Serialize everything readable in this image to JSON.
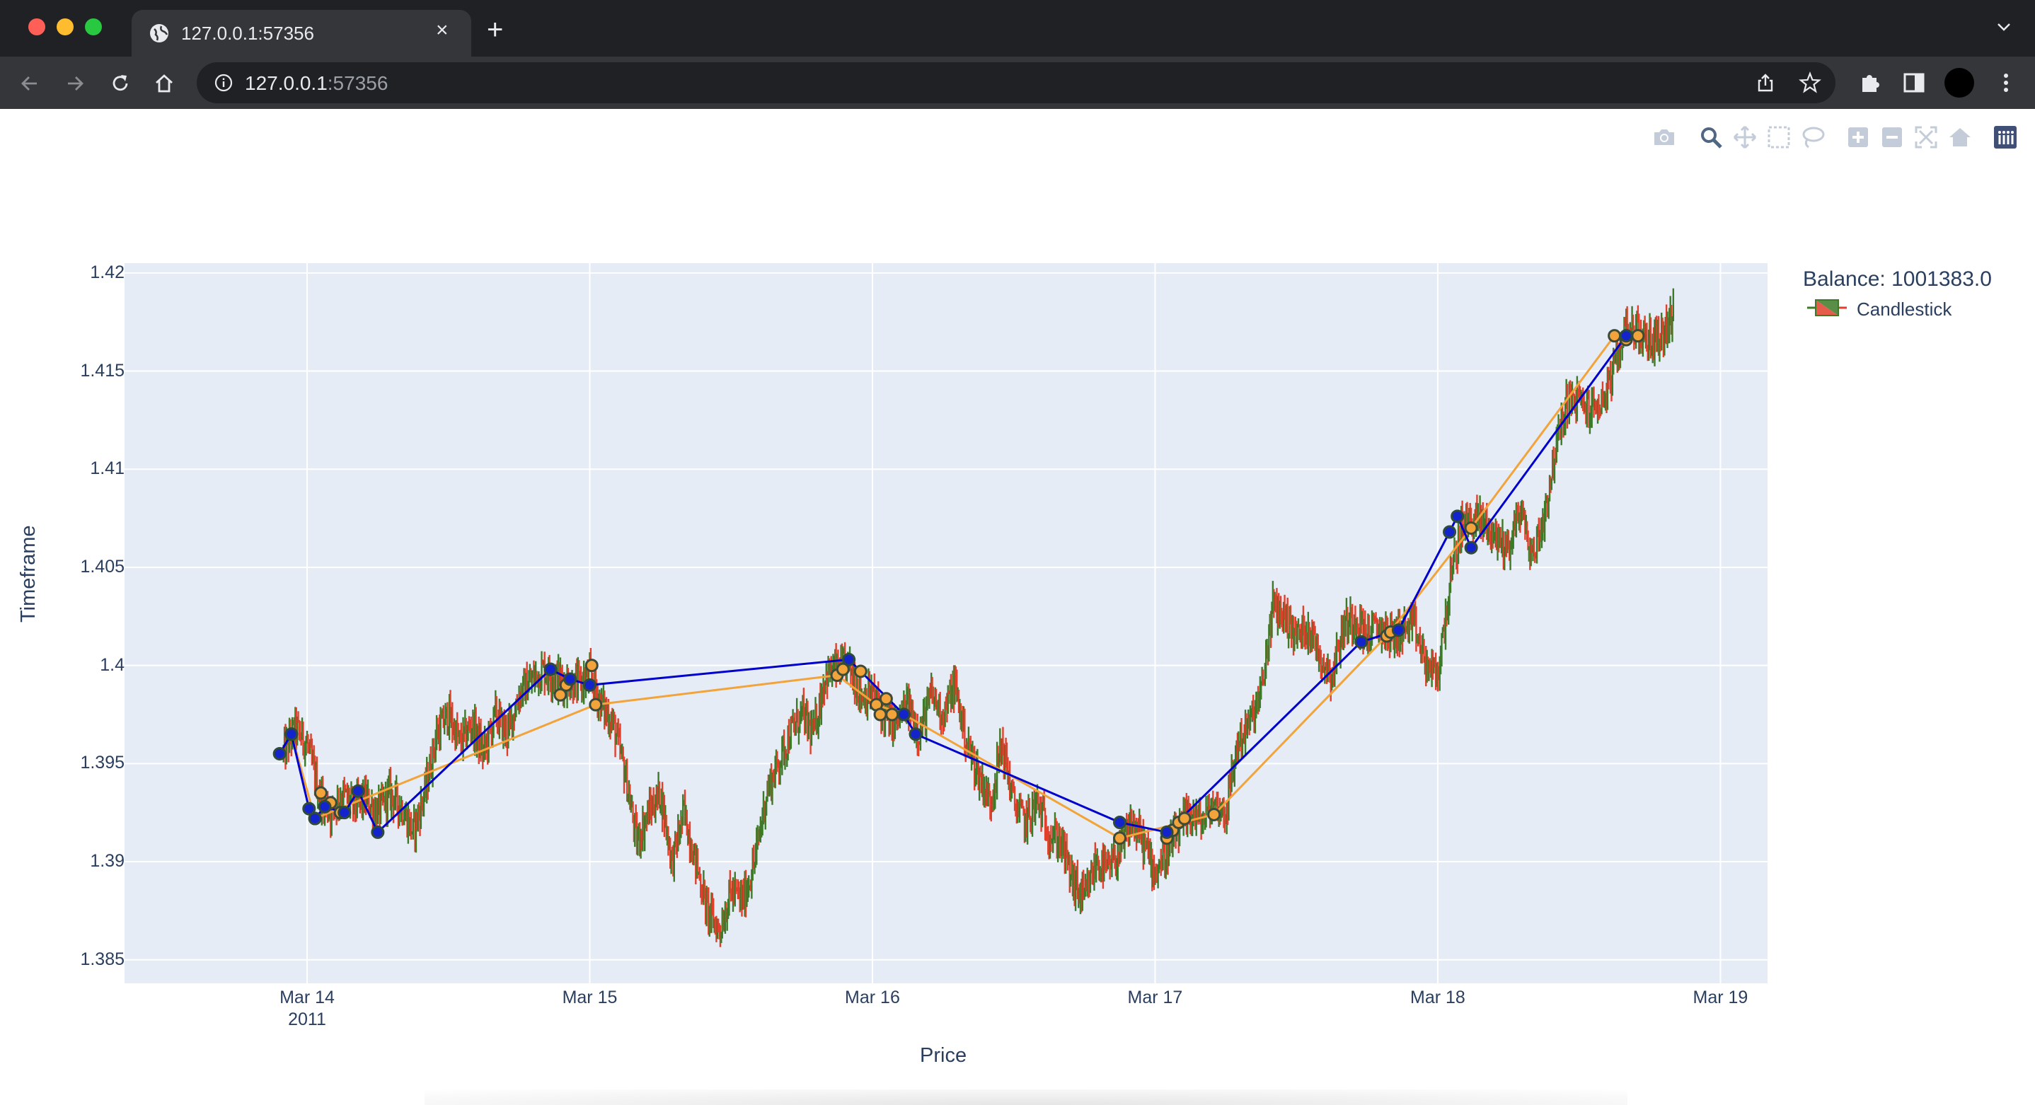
{
  "browser": {
    "tab_title": "127.0.0.1:57356",
    "url_host": "127.0.0.1",
    "url_port": ":57356",
    "colors": {
      "frame": "#202124",
      "toolbar": "#35363a"
    },
    "icons": [
      "back-icon",
      "forward-icon",
      "reload-icon",
      "home-icon",
      "info-icon",
      "share-icon",
      "star-icon",
      "extensions-icon",
      "sidepanel-icon",
      "profile-avatar",
      "kebab-menu-icon"
    ]
  },
  "modebar": {
    "icons": [
      "camera-icon",
      "zoom-icon",
      "pan-icon",
      "box-select-icon",
      "lasso-icon",
      "zoom-in-icon",
      "zoom-out-icon",
      "autoscale-icon",
      "reset-axes-icon",
      "plotly-logo-icon"
    ]
  },
  "legend": {
    "title": "Balance: 1001383.0",
    "item": "Candlestick"
  },
  "chart_data": {
    "type": "candlestick",
    "xlabel": "Price",
    "ylabel": "Timeframe",
    "ylim": [
      1.3838,
      1.4205
    ],
    "xlim": [
      "2011-03-13 08:30",
      "2011-03-19 04:00"
    ],
    "yticks": [
      "1.385",
      "1.39",
      "1.395",
      "1.4",
      "1.405",
      "1.41",
      "1.415",
      "1.42"
    ],
    "xticks": [
      {
        "label": "Mar 14",
        "sub": "2011",
        "x": "2011-03-14"
      },
      {
        "label": "Mar 15",
        "sub": "",
        "x": "2011-03-15"
      },
      {
        "label": "Mar 16",
        "sub": "",
        "x": "2011-03-16"
      },
      {
        "label": "Mar 17",
        "sub": "",
        "x": "2011-03-17"
      },
      {
        "label": "Mar 18",
        "sub": "",
        "x": "2011-03-18"
      },
      {
        "label": "Mar 19",
        "sub": "",
        "x": "2011-03-19"
      }
    ],
    "grid": true,
    "legend_position": "top-right",
    "colors": {
      "increasing": "#3d7a28",
      "decreasing": "#e0402b",
      "plot_bg": "#e5ecf6",
      "buy_line": "#0000cc",
      "sell_line": "#f2a33a"
    },
    "price_path": [
      [
        "2011-03-13 22:00",
        1.3955
      ],
      [
        "2011-03-13 23:00",
        1.3968
      ],
      [
        "2011-03-14 00:00",
        1.396
      ],
      [
        "2011-03-14 01:00",
        1.3935
      ],
      [
        "2011-03-14 02:00",
        1.3925
      ],
      [
        "2011-03-14 03:00",
        1.3935
      ],
      [
        "2011-03-14 04:00",
        1.3928
      ],
      [
        "2011-03-14 05:00",
        1.3932
      ],
      [
        "2011-03-14 06:00",
        1.3925
      ],
      [
        "2011-03-14 07:00",
        1.3935
      ],
      [
        "2011-03-14 08:00",
        1.3928
      ],
      [
        "2011-03-14 09:00",
        1.3915
      ],
      [
        "2011-03-14 10:00",
        1.3935
      ],
      [
        "2011-03-14 11:00",
        1.3965
      ],
      [
        "2011-03-14 12:00",
        1.3975
      ],
      [
        "2011-03-14 13:00",
        1.396
      ],
      [
        "2011-03-14 14:00",
        1.397
      ],
      [
        "2011-03-14 15:00",
        1.3955
      ],
      [
        "2011-03-14 16:00",
        1.3975
      ],
      [
        "2011-03-14 17:00",
        1.3965
      ],
      [
        "2011-03-14 18:00",
        1.3985
      ],
      [
        "2011-03-14 19:00",
        1.3992
      ],
      [
        "2011-03-14 20:00",
        1.3998
      ],
      [
        "2011-03-14 21:00",
        1.3994
      ],
      [
        "2011-03-14 22:00",
        1.3992
      ],
      [
        "2011-03-14 23:00",
        1.399
      ],
      [
        "2011-03-15 00:00",
        1.3995
      ],
      [
        "2011-03-15 01:00",
        1.398
      ],
      [
        "2011-03-15 02:00",
        1.397
      ],
      [
        "2011-03-15 03:00",
        1.3945
      ],
      [
        "2011-03-15 04:00",
        1.391
      ],
      [
        "2011-03-15 05:00",
        1.3925
      ],
      [
        "2011-03-15 06:00",
        1.3935
      ],
      [
        "2011-03-15 07:00",
        1.39
      ],
      [
        "2011-03-15 08:00",
        1.3925
      ],
      [
        "2011-03-15 09:00",
        1.39
      ],
      [
        "2011-03-15 10:00",
        1.3875
      ],
      [
        "2011-03-15 11:00",
        1.3865
      ],
      [
        "2011-03-15 12:00",
        1.3885
      ],
      [
        "2011-03-15 13:00",
        1.388
      ],
      [
        "2011-03-15 14:00",
        1.39
      ],
      [
        "2011-03-15 15:00",
        1.3935
      ],
      [
        "2011-03-15 16:00",
        1.395
      ],
      [
        "2011-03-15 17:00",
        1.3965
      ],
      [
        "2011-03-15 18:00",
        1.3975
      ],
      [
        "2011-03-15 19:00",
        1.3965
      ],
      [
        "2011-03-15 20:00",
        1.3995
      ],
      [
        "2011-03-15 21:00",
        1.3998
      ],
      [
        "2011-03-15 22:00",
        1.4
      ],
      [
        "2011-03-15 23:00",
        1.3985
      ],
      [
        "2011-03-16 00:00",
        1.3985
      ],
      [
        "2011-03-16 01:00",
        1.3975
      ],
      [
        "2011-03-16 02:00",
        1.397
      ],
      [
        "2011-03-16 03:00",
        1.398
      ],
      [
        "2011-03-16 04:00",
        1.3965
      ],
      [
        "2011-03-16 05:00",
        1.3985
      ],
      [
        "2011-03-16 06:00",
        1.3975
      ],
      [
        "2011-03-16 07:00",
        1.399
      ],
      [
        "2011-03-16 08:00",
        1.396
      ],
      [
        "2011-03-16 09:00",
        1.3945
      ],
      [
        "2011-03-16 10:00",
        1.393
      ],
      [
        "2011-03-16 11:00",
        1.396
      ],
      [
        "2011-03-16 12:00",
        1.393
      ],
      [
        "2011-03-16 13:00",
        1.392
      ],
      [
        "2011-03-16 14:00",
        1.393
      ],
      [
        "2011-03-16 15:00",
        1.3915
      ],
      [
        "2011-03-16 16:00",
        1.391
      ],
      [
        "2011-03-16 17:00",
        1.389
      ],
      [
        "2011-03-16 18:00",
        1.388
      ],
      [
        "2011-03-16 19:00",
        1.39
      ],
      [
        "2011-03-16 20:00",
        1.3895
      ],
      [
        "2011-03-16 21:00",
        1.3905
      ],
      [
        "2011-03-16 22:00",
        1.392
      ],
      [
        "2011-03-16 23:00",
        1.391
      ],
      [
        "2011-03-17 00:00",
        1.3895
      ],
      [
        "2011-03-17 01:00",
        1.3905
      ],
      [
        "2011-03-17 02:00",
        1.3915
      ],
      [
        "2011-03-17 03:00",
        1.3925
      ],
      [
        "2011-03-17 04:00",
        1.392
      ],
      [
        "2011-03-17 05:00",
        1.393
      ],
      [
        "2011-03-17 06:00",
        1.3925
      ],
      [
        "2011-03-17 07:00",
        1.396
      ],
      [
        "2011-03-17 08:00",
        1.397
      ],
      [
        "2011-03-17 09:00",
        1.3985
      ],
      [
        "2011-03-17 10:00",
        1.403
      ],
      [
        "2011-03-17 11:00",
        1.4025
      ],
      [
        "2011-03-17 12:00",
        1.4015
      ],
      [
        "2011-03-17 13:00",
        1.402
      ],
      [
        "2011-03-17 14:00",
        1.4005
      ],
      [
        "2011-03-17 15:00",
        1.3995
      ],
      [
        "2011-03-17 16:00",
        1.402
      ],
      [
        "2011-03-17 17:00",
        1.4025
      ],
      [
        "2011-03-17 18:00",
        1.4015
      ],
      [
        "2011-03-17 19:00",
        1.402
      ],
      [
        "2011-03-17 20:00",
        1.4015
      ],
      [
        "2011-03-17 21:00",
        1.4018
      ],
      [
        "2011-03-17 22:00",
        1.402
      ],
      [
        "2011-03-17 23:00",
        1.4
      ],
      [
        "2011-03-18 00:00",
        1.3995
      ],
      [
        "2011-03-18 01:00",
        1.404
      ],
      [
        "2011-03-18 02:00",
        1.407
      ],
      [
        "2011-03-18 03:00",
        1.4075
      ],
      [
        "2011-03-18 04:00",
        1.4072
      ],
      [
        "2011-03-18 05:00",
        1.4065
      ],
      [
        "2011-03-18 06:00",
        1.406
      ],
      [
        "2011-03-18 07:00",
        1.408
      ],
      [
        "2011-03-18 08:00",
        1.4055
      ],
      [
        "2011-03-18 09:00",
        1.4075
      ],
      [
        "2011-03-18 10:00",
        1.411
      ],
      [
        "2011-03-18 11:00",
        1.4135
      ],
      [
        "2011-03-18 12:00",
        1.4135
      ],
      [
        "2011-03-18 13:00",
        1.413
      ],
      [
        "2011-03-18 14:00",
        1.4135
      ],
      [
        "2011-03-18 15:00",
        1.415
      ],
      [
        "2011-03-18 16:00",
        1.4175
      ],
      [
        "2011-03-18 17:00",
        1.417
      ],
      [
        "2011-03-18 18:00",
        1.4165
      ],
      [
        "2011-03-18 19:00",
        1.4168
      ],
      [
        "2011-03-18 20:00",
        1.4178
      ]
    ],
    "buy_trades": [
      [
        "2011-03-13 21:40",
        1.3955
      ],
      [
        "2011-03-13 22:40",
        1.3965
      ],
      [
        "2011-03-14 00:10",
        1.3927
      ],
      [
        "2011-03-14 00:40",
        1.3922
      ],
      [
        "2011-03-14 01:30",
        1.3928
      ],
      [
        "2011-03-14 03:10",
        1.3925
      ],
      [
        "2011-03-14 04:20",
        1.3936
      ],
      [
        "2011-03-14 06:00",
        1.3915
      ],
      [
        "2011-03-14 20:40",
        1.3998
      ],
      [
        "2011-03-14 22:20",
        1.3993
      ],
      [
        "2011-03-15 00:00",
        1.399
      ],
      [
        "2011-03-15 22:00",
        1.4003
      ],
      [
        "2011-03-16 02:40",
        1.3975
      ],
      [
        "2011-03-16 03:40",
        1.3965
      ],
      [
        "2011-03-16 21:00",
        1.392
      ],
      [
        "2011-03-17 01:00",
        1.3915
      ],
      [
        "2011-03-17 17:30",
        1.4012
      ],
      [
        "2011-03-17 20:40",
        1.4018
      ],
      [
        "2011-03-18 01:00",
        1.4068
      ],
      [
        "2011-03-18 01:40",
        1.4076
      ],
      [
        "2011-03-18 02:50",
        1.406
      ],
      [
        "2011-03-18 16:00",
        1.4168
      ]
    ],
    "sell_trades": [
      [
        "2011-03-13 22:40",
        1.3965
      ],
      [
        "2011-03-14 00:40",
        1.3922
      ],
      [
        "2011-03-14 01:10",
        1.3935
      ],
      [
        "2011-03-14 02:00",
        1.393
      ],
      [
        "2011-03-14 02:50",
        1.3925
      ],
      [
        "2011-03-14 20:40",
        1.3998
      ],
      [
        "2011-03-14 21:30",
        1.3985
      ],
      [
        "2011-03-14 22:00",
        1.399
      ],
      [
        "2011-03-15 00:10",
        1.4
      ],
      [
        "2011-03-15 00:30",
        1.398
      ],
      [
        "2011-03-15 21:00",
        1.3995
      ],
      [
        "2011-03-15 21:30",
        1.3998
      ],
      [
        "2011-03-15 23:00",
        1.3997
      ],
      [
        "2011-03-16 00:20",
        1.398
      ],
      [
        "2011-03-16 00:40",
        1.3975
      ],
      [
        "2011-03-16 01:10",
        1.3983
      ],
      [
        "2011-03-16 01:40",
        1.3975
      ],
      [
        "2011-03-16 02:40",
        1.3975
      ],
      [
        "2011-03-16 21:00",
        1.3912
      ],
      [
        "2011-03-17 01:00",
        1.3912
      ],
      [
        "2011-03-17 01:30",
        1.3916
      ],
      [
        "2011-03-17 02:00",
        1.392
      ],
      [
        "2011-03-17 02:30",
        1.3922
      ],
      [
        "2011-03-17 05:00",
        1.3924
      ],
      [
        "2011-03-17 19:40",
        1.4015
      ],
      [
        "2011-03-17 20:00",
        1.4017
      ],
      [
        "2011-03-18 02:50",
        1.407
      ],
      [
        "2011-03-18 15:00",
        1.4168
      ],
      [
        "2011-03-18 16:00",
        1.4166
      ],
      [
        "2011-03-18 17:00",
        1.4168
      ]
    ],
    "buy_line": [
      [
        "2011-03-13 21:40",
        1.3955
      ],
      [
        "2011-03-13 22:40",
        1.3965
      ],
      [
        "2011-03-14 00:10",
        1.3927
      ],
      [
        "2011-03-14 00:40",
        1.3922
      ],
      [
        "2011-03-14 01:30",
        1.3928
      ],
      [
        "2011-03-14 03:10",
        1.3925
      ],
      [
        "2011-03-14 04:20",
        1.3936
      ],
      [
        "2011-03-14 06:00",
        1.3915
      ],
      [
        "2011-03-14 20:40",
        1.3998
      ],
      [
        "2011-03-14 22:20",
        1.3993
      ],
      [
        "2011-03-15 00:00",
        1.399
      ],
      [
        "2011-03-15 22:00",
        1.4003
      ],
      [
        "2011-03-16 02:40",
        1.3975
      ],
      [
        "2011-03-16 03:40",
        1.3965
      ],
      [
        "2011-03-16 21:00",
        1.392
      ],
      [
        "2011-03-17 01:00",
        1.3915
      ],
      [
        "2011-03-17 17:30",
        1.4012
      ],
      [
        "2011-03-17 20:40",
        1.4018
      ],
      [
        "2011-03-18 01:00",
        1.4068
      ],
      [
        "2011-03-18 01:40",
        1.4076
      ],
      [
        "2011-03-18 02:50",
        1.406
      ],
      [
        "2011-03-18 16:00",
        1.4168
      ]
    ],
    "sell_line": [
      [
        "2011-03-13 22:40",
        1.3965
      ],
      [
        "2011-03-14 00:40",
        1.3922
      ],
      [
        "2011-03-15 00:30",
        1.398
      ],
      [
        "2011-03-15 21:00",
        1.3995
      ],
      [
        "2011-03-16 00:20",
        1.398
      ],
      [
        "2011-03-16 02:40",
        1.3975
      ],
      [
        "2011-03-16 21:00",
        1.3912
      ],
      [
        "2011-03-17 05:00",
        1.3924
      ],
      [
        "2011-03-17 19:40",
        1.4015
      ],
      [
        "2011-03-18 02:50",
        1.407
      ],
      [
        "2011-03-18 15:00",
        1.4168
      ]
    ]
  }
}
